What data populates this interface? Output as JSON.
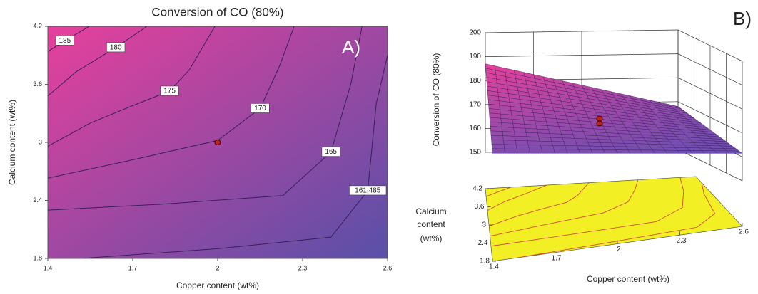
{
  "chart_data": [
    {
      "type": "contour",
      "title": "Conversion of CO (80%)",
      "panel_label": "A)",
      "xlabel": "Copper content (wt%)",
      "ylabel": "Calcium content (wt%)",
      "xlim": [
        1.4,
        2.6
      ],
      "ylim": [
        1.8,
        4.2
      ],
      "xticks": [
        1.4,
        1.7,
        2,
        2.3,
        2.6
      ],
      "yticks": [
        1.8,
        2.4,
        3,
        3.6,
        4.2
      ],
      "colormap": [
        "#5850a8",
        "#e6409c"
      ],
      "line_color": "#3a1f5a",
      "series": [
        {
          "level": 185,
          "x": [
            1.4,
            1.46,
            1.546
          ],
          "y": [
            3.94,
            4.05,
            4.2
          ]
        },
        {
          "level": 180,
          "x": [
            1.4,
            1.5,
            1.64,
            1.75
          ],
          "y": [
            3.48,
            3.73,
            3.98,
            4.2
          ]
        },
        {
          "level": 175,
          "x": [
            1.4,
            1.55,
            1.7,
            1.83,
            1.9,
            1.99
          ],
          "y": [
            2.96,
            3.2,
            3.38,
            3.53,
            3.75,
            4.2
          ]
        },
        {
          "level": 170,
          "x": [
            1.4,
            1.7,
            2,
            2.15,
            2.22,
            2.27
          ],
          "y": [
            2.63,
            2.82,
            3.02,
            3.35,
            3.8,
            4.2
          ]
        },
        {
          "level": 165,
          "x": [
            1.4,
            1.8,
            2.23,
            2.4,
            2.47,
            2.51
          ],
          "y": [
            2.3,
            2.36,
            2.45,
            2.9,
            3.6,
            4.2
          ]
        },
        {
          "level": 161.485,
          "x": [
            1.52,
            2,
            2.4,
            2.53,
            2.56,
            2.6
          ],
          "y": [
            1.8,
            1.9,
            2.02,
            2.5,
            3.4,
            3.9
          ]
        }
      ],
      "point": {
        "x": 2,
        "y": 3
      }
    },
    {
      "type": "surface3d",
      "panel_label": "B)",
      "xlabel": "Copper content (wt%)",
      "ylabel": [
        "Calcium",
        "content",
        "(wt%)"
      ],
      "zlabel": "Conversion of CO (80%)",
      "xlim": [
        1.4,
        2.6
      ],
      "ylim": [
        1.8,
        4.2
      ],
      "zlim": [
        150,
        200
      ],
      "xticks": [
        1.4,
        1.7,
        2,
        2.3,
        2.6
      ],
      "yticks": [
        1.8,
        2.4,
        3,
        3.6,
        4.2
      ],
      "zticks": [
        150,
        160,
        170,
        180,
        190,
        200
      ],
      "surface": {
        "z": [
          [
            166,
            161.5
          ],
          [
            187,
            168
          ]
        ]
      },
      "colormap": [
        "#6a4fb4",
        "#e8409a"
      ],
      "floor_color": "#f2f024",
      "floor_line_color": "#d04a3a",
      "point": {
        "x": 2,
        "y": 3,
        "z": 170
      }
    }
  ]
}
